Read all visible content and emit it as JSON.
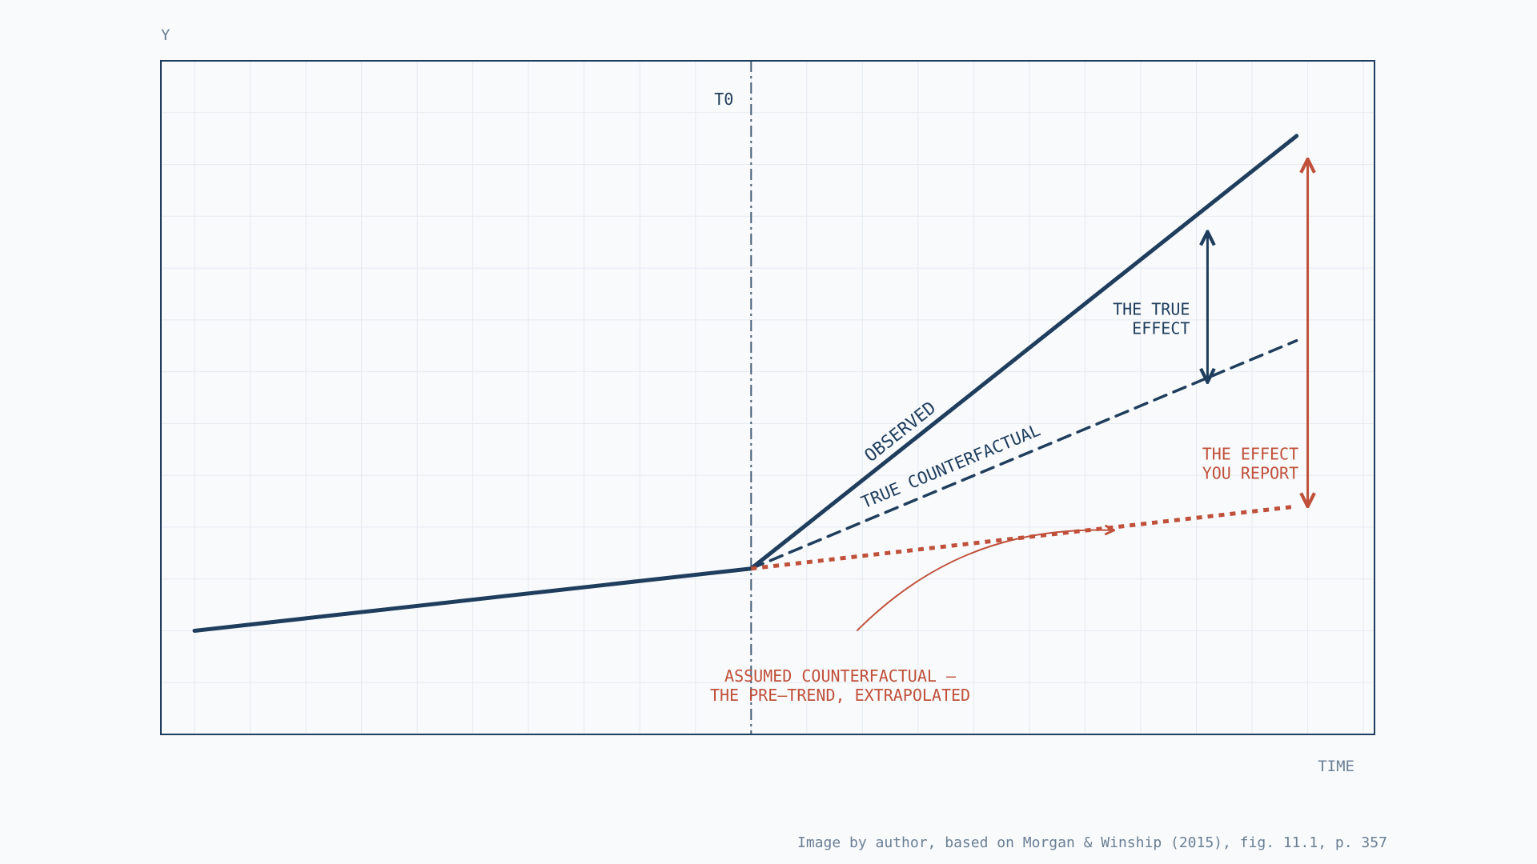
{
  "chart_data": {
    "type": "line",
    "ylabel": "Y",
    "xlabel": "TIME",
    "xlim": [
      0,
      10.6
    ],
    "ylim": [
      0,
      13
    ],
    "grid": true,
    "series": [
      {
        "name": "OBSERVED",
        "style": "solid",
        "color": "#1f3d5c",
        "x": [
          0,
          5,
          9.9
        ],
        "y": [
          2,
          3.2,
          11.55
        ]
      },
      {
        "name": "TRUE COUNTERFACTUAL",
        "style": "dashed",
        "color": "#1f3d5c",
        "x": [
          5,
          9.9
        ],
        "y": [
          3.2,
          7.6
        ]
      },
      {
        "name": "",
        "style": "dotted",
        "color": "#c0503a",
        "x": [
          5,
          9.9
        ],
        "y": [
          3.2,
          4.4
        ]
      }
    ],
    "vline": {
      "x": 5,
      "label": "T0",
      "color": "#1f3d5c"
    },
    "annotations": {
      "true_effect": {
        "lines": [
          "THE TRUE",
          "EFFECT"
        ],
        "x": 9.1,
        "y_from": 6.8,
        "y_to": 9.7,
        "color": "#1f3d5c"
      },
      "reported_effect": {
        "lines": [
          "THE EFFECT",
          "YOU REPORT"
        ],
        "x": 10.0,
        "y_from": 4.4,
        "y_to": 11.1,
        "color": "#c0503a"
      },
      "assumed": {
        "lines": [
          "ASSUMED COUNTERFACTUAL —",
          "THE PRE–TREND, EXTRAPOLATED"
        ],
        "color": "#c0503a"
      }
    },
    "caption": "Image by author, based on Morgan & Winship (2015), fig. 11.1, p. 357"
  },
  "colors": {
    "background": "#f8fafc",
    "navy": "#1f3d5c",
    "red": "#c0503a",
    "muted": "#6a7f94",
    "grid": "#e6ebf0"
  }
}
